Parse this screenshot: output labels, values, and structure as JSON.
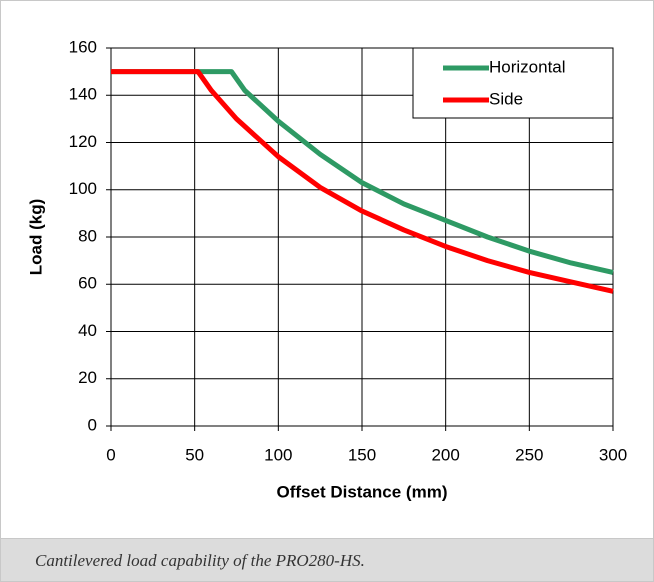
{
  "chart_data": {
    "type": "line",
    "xlabel": "Offset Distance (mm)",
    "ylabel": "Load (kg)",
    "caption": "Cantilevered load capability of the PRO280-HS.",
    "xlim": [
      0,
      300
    ],
    "xticks": [
      0,
      50,
      100,
      150,
      200,
      250,
      300
    ],
    "ylim": [
      0,
      160
    ],
    "yticks": [
      0,
      20,
      40,
      60,
      80,
      100,
      120,
      140,
      160
    ],
    "grid": true,
    "legend": "upper right",
    "series": [
      {
        "name": "Horizontal",
        "color": "#2e9a64",
        "x": [
          0,
          72,
          80,
          100,
          125,
          150,
          175,
          200,
          225,
          250,
          275,
          300
        ],
        "values": [
          150,
          150,
          142,
          129,
          115,
          103,
          94,
          87,
          80,
          74,
          69,
          65
        ]
      },
      {
        "name": "Side",
        "color": "#ff0000",
        "x": [
          0,
          52,
          60,
          75,
          100,
          125,
          150,
          175,
          200,
          225,
          250,
          275,
          300
        ],
        "values": [
          150,
          150,
          142,
          130,
          114,
          101,
          91,
          83,
          76,
          70,
          65,
          61,
          57
        ]
      }
    ]
  }
}
